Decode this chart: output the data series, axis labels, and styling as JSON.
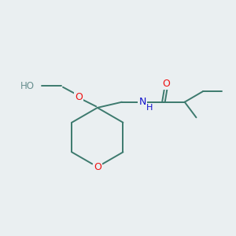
{
  "background_color": "#eaeff1",
  "bond_color": "#3d7a6e",
  "atom_colors": {
    "O": "#ee1111",
    "N": "#1111cc",
    "H_grey": "#6a9090",
    "C": "#3d7a6e"
  },
  "font_size": 9.0,
  "font_size_small": 8.0,
  "line_width": 1.4
}
